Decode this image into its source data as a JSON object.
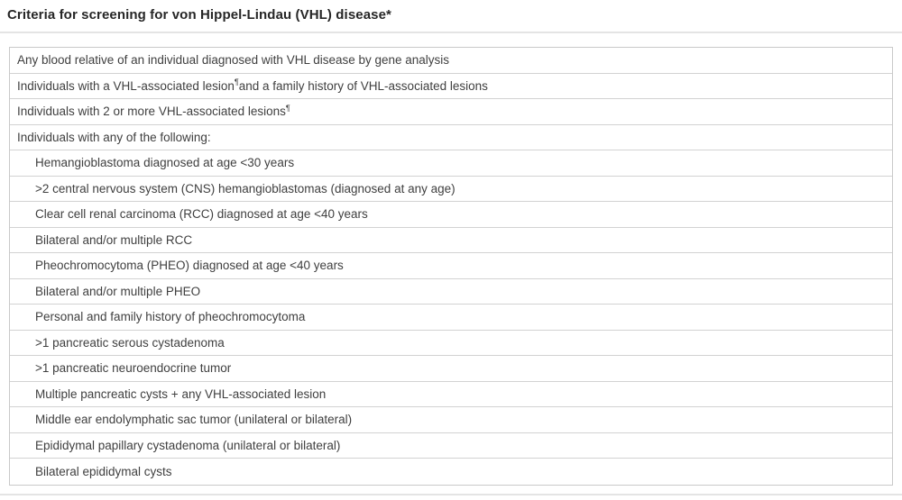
{
  "header": {
    "title": "Criteria for screening for von Hippel-Lindau (VHL) disease*"
  },
  "table": {
    "rows": [
      {
        "indent": 0,
        "segments": [
          {
            "text": "Any blood relative of an individual diagnosed with VHL disease by gene analysis"
          }
        ]
      },
      {
        "indent": 0,
        "segments": [
          {
            "text": "Individuals with a VHL-associated lesion"
          },
          {
            "text": "¶",
            "sup": true
          },
          {
            "text": " and a family history of VHL-associated lesions"
          }
        ]
      },
      {
        "indent": 0,
        "segments": [
          {
            "text": "Individuals with 2 or more VHL-associated lesions"
          },
          {
            "text": "¶",
            "sup": true
          }
        ]
      },
      {
        "indent": 0,
        "segments": [
          {
            "text": "Individuals with any of the following:"
          }
        ]
      },
      {
        "indent": 1,
        "segments": [
          {
            "text": "Hemangioblastoma diagnosed at age <30 years"
          }
        ]
      },
      {
        "indent": 1,
        "segments": [
          {
            "text": ">2 central nervous system (CNS) hemangioblastomas (diagnosed at any age)"
          }
        ]
      },
      {
        "indent": 1,
        "segments": [
          {
            "text": "Clear cell renal carcinoma (RCC) diagnosed at age <40 years"
          }
        ]
      },
      {
        "indent": 1,
        "segments": [
          {
            "text": "Bilateral and/or multiple RCC"
          }
        ]
      },
      {
        "indent": 1,
        "segments": [
          {
            "text": "Pheochromocytoma (PHEO) diagnosed at age <40 years"
          }
        ]
      },
      {
        "indent": 1,
        "segments": [
          {
            "text": "Bilateral and/or multiple PHEO"
          }
        ]
      },
      {
        "indent": 1,
        "segments": [
          {
            "text": "Personal and family history of pheochromocytoma"
          }
        ]
      },
      {
        "indent": 1,
        "segments": [
          {
            "text": ">1 pancreatic serous cystadenoma"
          }
        ]
      },
      {
        "indent": 1,
        "segments": [
          {
            "text": ">1 pancreatic neuroendocrine tumor"
          }
        ]
      },
      {
        "indent": 1,
        "segments": [
          {
            "text": "Multiple pancreatic cysts + any VHL-associated lesion"
          }
        ]
      },
      {
        "indent": 1,
        "segments": [
          {
            "text": "Middle ear endolymphatic sac tumor (unilateral or bilateral)"
          }
        ]
      },
      {
        "indent": 1,
        "segments": [
          {
            "text": "Epididymal papillary cystadenoma (unilateral or bilateral)"
          }
        ]
      },
      {
        "indent": 1,
        "segments": [
          {
            "text": "Bilateral epididymal cysts"
          }
        ]
      }
    ]
  },
  "colors": {
    "title_text": "#262626",
    "body_text": "#3f3f3f",
    "table_border": "#c9c9c9",
    "row_divider": "#d2d2d2",
    "page_divider": "#e4e4e4",
    "background": "#ffffff"
  }
}
